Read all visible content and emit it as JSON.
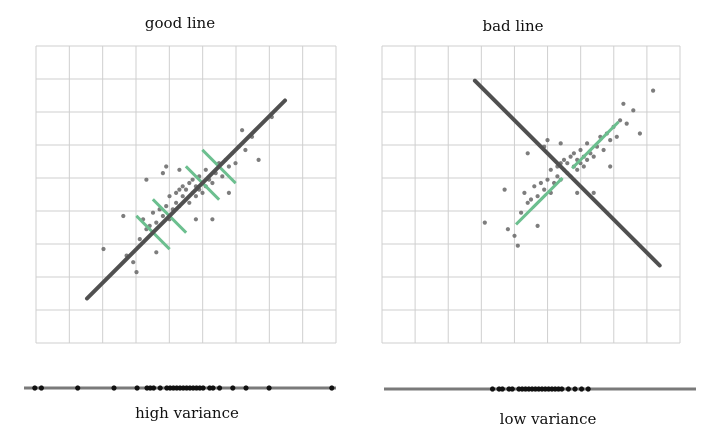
{
  "panels": [
    {
      "title": "good line",
      "caption": "high variance",
      "line": [
        [
          -3.0,
          -3.0
        ],
        [
          3.0,
          3.0
        ]
      ],
      "projections": [
        [
          -1.0,
          -1.0
        ],
        [
          -0.5,
          -0.5
        ],
        [
          0.5,
          0.5
        ],
        [
          1.0,
          1.0
        ]
      ],
      "projection_axis": "perpendicular",
      "projected_values": [
        -4.4,
        -4.2,
        -3.1,
        -2.0,
        -1.3,
        -1.0,
        -0.9,
        -0.8,
        -0.6,
        -0.4,
        -0.3,
        -0.2,
        -0.1,
        0.0,
        0.1,
        0.2,
        0.3,
        0.4,
        0.5,
        0.6,
        0.7,
        0.9,
        1.0,
        1.2,
        1.6,
        2.0,
        2.7,
        4.6
      ]
    },
    {
      "title": "bad line",
      "caption": "low variance",
      "line": [
        [
          -2.8,
          2.8
        ],
        [
          2.8,
          -2.8
        ]
      ],
      "projections": [
        [
          0.6,
          0.6
        ],
        [
          1.1,
          1.1
        ],
        [
          -0.6,
          -0.6
        ],
        [
          -1.1,
          -1.1
        ]
      ],
      "projection_axis": "along",
      "projected_values": [
        -1.5,
        -1.3,
        -1.2,
        -1.0,
        -0.9,
        -0.7,
        -0.6,
        -0.5,
        -0.4,
        -0.3,
        -0.2,
        -0.1,
        0.0,
        0.1,
        0.2,
        0.3,
        0.4,
        0.5,
        0.6,
        0.8,
        1.0,
        1.2,
        1.4
      ]
    }
  ],
  "points": [
    [
      -1.8,
      -1.7
    ],
    [
      -1.6,
      -1.9
    ],
    [
      -1.4,
      -1.2
    ],
    [
      -1.3,
      -0.6
    ],
    [
      -1.2,
      -0.9
    ],
    [
      -1.1,
      -0.8
    ],
    [
      -1.0,
      -0.4
    ],
    [
      -0.9,
      -0.7
    ],
    [
      -0.8,
      -0.3
    ],
    [
      -0.7,
      -0.5
    ],
    [
      -0.6,
      -0.2
    ],
    [
      -0.5,
      -0.6
    ],
    [
      -0.5,
      0.1
    ],
    [
      -0.4,
      -0.3
    ],
    [
      -0.3,
      0.2
    ],
    [
      -0.3,
      -0.1
    ],
    [
      -0.2,
      0.3
    ],
    [
      -0.2,
      -0.2
    ],
    [
      -0.1,
      0.1
    ],
    [
      -0.1,
      0.4
    ],
    [
      0.0,
      0.0
    ],
    [
      0.0,
      0.3
    ],
    [
      0.1,
      -0.1
    ],
    [
      0.1,
      0.5
    ],
    [
      0.2,
      0.2
    ],
    [
      0.2,
      0.6
    ],
    [
      0.3,
      0.1
    ],
    [
      0.3,
      0.4
    ],
    [
      0.4,
      0.3
    ],
    [
      0.4,
      0.7
    ],
    [
      0.5,
      0.2
    ],
    [
      0.5,
      0.5
    ],
    [
      0.6,
      0.4
    ],
    [
      0.6,
      0.9
    ],
    [
      0.7,
      0.6
    ],
    [
      0.8,
      0.5
    ],
    [
      0.9,
      0.8
    ],
    [
      1.0,
      1.1
    ],
    [
      1.1,
      0.7
    ],
    [
      1.2,
      1.2
    ],
    [
      1.3,
      1.0
    ],
    [
      1.4,
      1.4
    ],
    [
      1.5,
      1.1
    ],
    [
      1.6,
      1.6
    ],
    [
      1.8,
      1.5
    ],
    [
      2.0,
      1.9
    ],
    [
      -2.5,
      -1.5
    ],
    [
      -1.9,
      -0.5
    ],
    [
      -1.5,
      -2.2
    ],
    [
      -0.9,
      -1.6
    ],
    [
      -1.2,
      0.6
    ],
    [
      -0.6,
      1.0
    ],
    [
      0.8,
      -0.6
    ],
    [
      1.3,
      0.2
    ],
    [
      2.2,
      1.2
    ],
    [
      2.6,
      2.5
    ],
    [
      -0.2,
      0.9
    ],
    [
      0.3,
      -0.6
    ],
    [
      1.7,
      2.1
    ],
    [
      -0.7,
      0.8
    ]
  ],
  "colors": {
    "line": "#505050",
    "points": "#666666",
    "projection": "#6cbf8f",
    "grid": "#cfcfcf",
    "axis_band": "#7a7a7a",
    "dots": "#111111"
  }
}
